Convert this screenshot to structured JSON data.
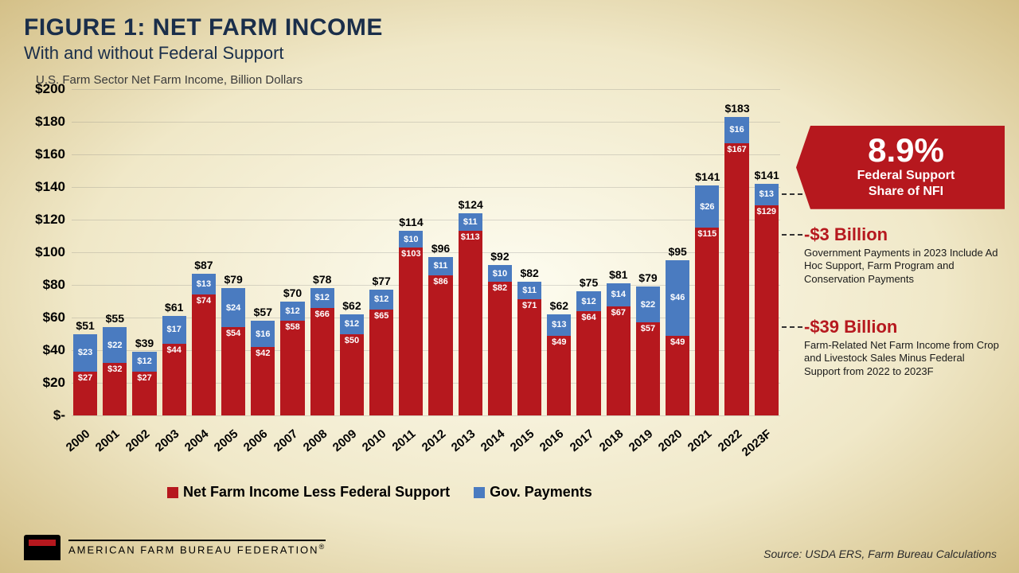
{
  "header": {
    "title": "FIGURE 1: NET FARM INCOME",
    "subtitle": "With and without Federal Support"
  },
  "axis_label": "U.S. Farm Sector Net Farm Income, Billion Dollars",
  "chart": {
    "type": "stacked-bar",
    "ylim": [
      0,
      200
    ],
    "ytick_step": 20,
    "yticks": [
      "$-",
      "$20",
      "$40",
      "$60",
      "$80",
      "$100",
      "$120",
      "$140",
      "$160",
      "$180",
      "$200"
    ],
    "colors": {
      "red": "#b6181e",
      "blue": "#4a7bc0",
      "grid": "rgba(120,120,120,0.25)",
      "background": "transparent"
    },
    "legend": [
      {
        "swatch": "#b6181e",
        "label": "Net Farm Income Less Federal Support"
      },
      {
        "swatch": "#4a7bc0",
        "label": "Gov. Payments"
      }
    ],
    "years": [
      "2000",
      "2001",
      "2002",
      "2003",
      "2004",
      "2005",
      "2006",
      "2007",
      "2008",
      "2009",
      "2010",
      "2011",
      "2012",
      "2013",
      "2014",
      "2015",
      "2016",
      "2017",
      "2018",
      "2019",
      "2020",
      "2021",
      "2022",
      "2023F"
    ],
    "red_values": [
      27,
      32,
      27,
      44,
      74,
      54,
      42,
      58,
      66,
      50,
      65,
      103,
      86,
      113,
      82,
      71,
      49,
      64,
      67,
      57,
      49,
      115,
      167,
      129
    ],
    "blue_values": [
      23,
      22,
      12,
      17,
      13,
      24,
      16,
      12,
      12,
      12,
      12,
      10,
      11,
      11,
      10,
      11,
      13,
      12,
      14,
      22,
      46,
      26,
      16,
      13
    ],
    "totals": [
      "$51",
      "$55",
      "$39",
      "$61",
      "$87",
      "$79",
      "$57",
      "$70",
      "$78",
      "$62",
      "$77",
      "$114",
      "$96",
      "$124",
      "$92",
      "$82",
      "$62",
      "$75",
      "$81",
      "$79",
      "$95",
      "$141",
      "$183",
      "$141"
    ],
    "red_labels": [
      "$27",
      "$32",
      "$27",
      "$44",
      "$74",
      "$54",
      "$42",
      "$58",
      "$66",
      "$50",
      "$65",
      "$103",
      "$86",
      "$113",
      "$82",
      "$71",
      "$49",
      "$64",
      "$67",
      "$57",
      "$49",
      "$115",
      "$167",
      "$129"
    ],
    "blue_labels": [
      "$23",
      "$22",
      "$12",
      "$17",
      "$13",
      "$24",
      "$16",
      "$12",
      "$12",
      "$12",
      "$12",
      "$10",
      "$11",
      "$11",
      "$10",
      "$11",
      "$13",
      "$12",
      "$14",
      "$22",
      "$46",
      "$26",
      "$16",
      "$13"
    ]
  },
  "callout": {
    "pct": "8.9%",
    "sub1": "Federal Support",
    "sub2": "Share of NFI"
  },
  "note1": {
    "heading": "-$3 Billion",
    "body": "Government Payments in 2023 Include Ad Hoc Support, Farm Program and Conservation Payments"
  },
  "note2": {
    "heading": "-$39 Billion",
    "body": "Farm-Related Net Farm Income from Crop and Livestock Sales Minus Federal Support from 2022 to 2023F"
  },
  "source": "Source: USDA ERS, Farm Bureau Calculations",
  "logo_text": "AMERICAN FARM BUREAU FEDERATION"
}
